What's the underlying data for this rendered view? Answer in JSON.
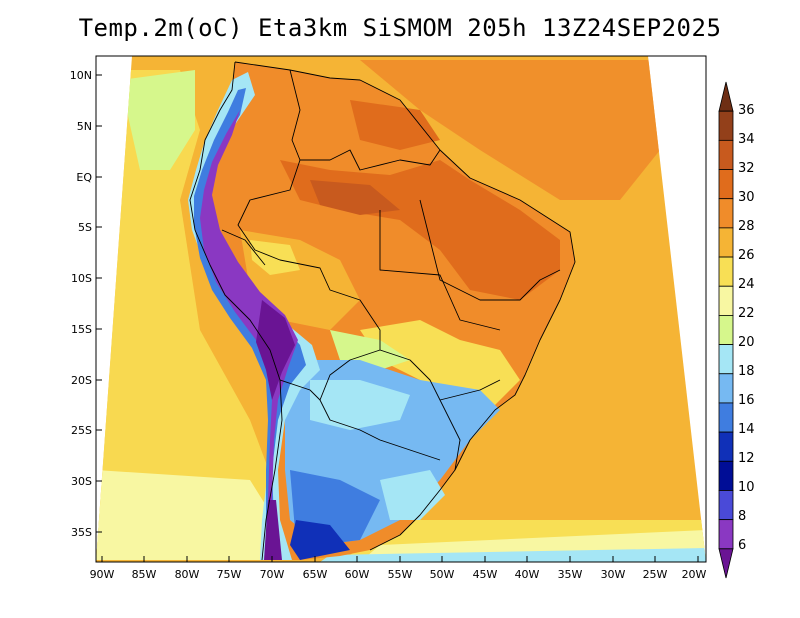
{
  "title": "Temp.2m(oC) Eta3km SiSMOM 205h 13Z24SEP2025",
  "units": "oC",
  "map": {
    "projection": "conic",
    "lon_range": [
      -90,
      -20
    ],
    "lat_range": [
      -38,
      11
    ],
    "lat_labels": [
      {
        "lat": 10,
        "label": "10N"
      },
      {
        "lat": 5,
        "label": "5N"
      },
      {
        "lat": 0,
        "label": "EQ"
      },
      {
        "lat": -5,
        "label": "5S"
      },
      {
        "lat": -10,
        "label": "10S"
      },
      {
        "lat": -15,
        "label": "15S"
      },
      {
        "lat": -20,
        "label": "20S"
      },
      {
        "lat": -25,
        "label": "25S"
      },
      {
        "lat": -30,
        "label": "30S"
      },
      {
        "lat": -35,
        "label": "35S"
      }
    ],
    "lon_labels": [
      {
        "lon": -90,
        "label": "90W"
      },
      {
        "lon": -85,
        "label": "85W"
      },
      {
        "lon": -80,
        "label": "80W"
      },
      {
        "lon": -75,
        "label": "75W"
      },
      {
        "lon": -70,
        "label": "70W"
      },
      {
        "lon": -65,
        "label": "65W"
      },
      {
        "lon": -60,
        "label": "60W"
      },
      {
        "lon": -55,
        "label": "55W"
      },
      {
        "lon": -50,
        "label": "50W"
      },
      {
        "lon": -45,
        "label": "45W"
      },
      {
        "lon": -40,
        "label": "40W"
      },
      {
        "lon": -35,
        "label": "35W"
      },
      {
        "lon": -30,
        "label": "30W"
      },
      {
        "lon": -25,
        "label": "25W"
      },
      {
        "lon": -20,
        "label": "20W"
      }
    ]
  },
  "colorbar": {
    "labels": [
      "36",
      "34",
      "32",
      "30",
      "28",
      "26",
      "24",
      "22",
      "20",
      "18",
      "16",
      "14",
      "12",
      "10",
      "8",
      "6"
    ],
    "colors": [
      "#6e2e14",
      "#93401a",
      "#c85a1e",
      "#e06c1c",
      "#f08c2a",
      "#f5b435",
      "#f8df55",
      "#f8f7a2",
      "#d6f78c",
      "#a5e6f5",
      "#76b9f2",
      "#3f7de0",
      "#1030b8",
      "#000d96",
      "#4a4ad8",
      "#8a38c2",
      "#6a1494"
    ]
  }
}
